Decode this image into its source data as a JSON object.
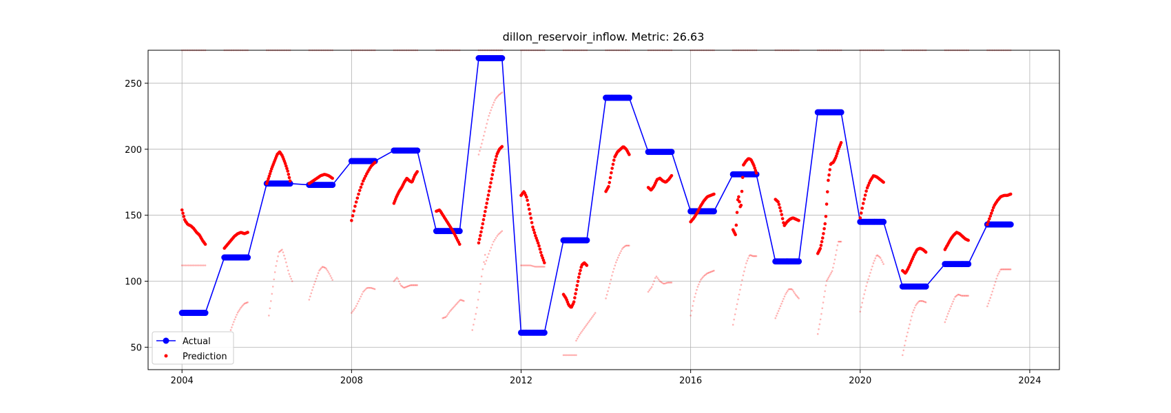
{
  "chart_data": {
    "type": "line",
    "title": "dillon_reservoir_inflow. Metric: 26.63",
    "xlabel": "",
    "ylabel": "",
    "xlim": [
      2003.2,
      2024.7
    ],
    "ylim": [
      33,
      275
    ],
    "x_ticks": [
      "2004",
      "2008",
      "2012",
      "2016",
      "2020",
      "2024"
    ],
    "y_ticks": [
      "50",
      "100",
      "150",
      "200",
      "250"
    ],
    "grid": true,
    "legend": {
      "location": "lower-left",
      "entries": [
        "Actual",
        "Prediction"
      ]
    },
    "colors": {
      "actual": "#0000ff",
      "prediction": "#ff0000"
    },
    "series": [
      {
        "name": "Actual",
        "marker": "circle",
        "steps": [
          {
            "start": 2004.0,
            "end": 2004.55,
            "value": 76
          },
          {
            "start": 2005.0,
            "end": 2005.55,
            "value": 118
          },
          {
            "start": 2006.0,
            "end": 2006.55,
            "value": 174
          },
          {
            "start": 2007.0,
            "end": 2007.55,
            "value": 173
          },
          {
            "start": 2008.0,
            "end": 2008.55,
            "value": 191
          },
          {
            "start": 2009.0,
            "end": 2009.55,
            "value": 199
          },
          {
            "start": 2010.0,
            "end": 2010.55,
            "value": 138
          },
          {
            "start": 2011.0,
            "end": 2011.55,
            "value": 269
          },
          {
            "start": 2012.0,
            "end": 2012.55,
            "value": 61
          },
          {
            "start": 2013.0,
            "end": 2013.55,
            "value": 131
          },
          {
            "start": 2014.0,
            "end": 2014.55,
            "value": 239
          },
          {
            "start": 2015.0,
            "end": 2015.55,
            "value": 198
          },
          {
            "start": 2016.0,
            "end": 2016.55,
            "value": 153
          },
          {
            "start": 2017.0,
            "end": 2017.55,
            "value": 181
          },
          {
            "start": 2018.0,
            "end": 2018.55,
            "value": 115
          },
          {
            "start": 2019.0,
            "end": 2019.55,
            "value": 228
          },
          {
            "start": 2020.0,
            "end": 2020.55,
            "value": 145
          },
          {
            "start": 2021.0,
            "end": 2021.55,
            "value": 96
          },
          {
            "start": 2022.0,
            "end": 2022.55,
            "value": 113
          },
          {
            "start": 2023.0,
            "end": 2023.55,
            "value": 143
          }
        ]
      },
      {
        "name": "Prediction",
        "marker": "dot",
        "segments": [
          {
            "start": 2004.0,
            "end": 2004.55,
            "values": [
              154,
              146,
              143,
              142,
              140,
              137,
              135,
              131,
              128
            ]
          },
          {
            "start": 2005.0,
            "end": 2005.55,
            "values": [
              125,
              128,
              131,
              134,
              136,
              137,
              136,
              137
            ]
          },
          {
            "start": 2006.0,
            "end": 2006.55,
            "values": [
              174,
              180,
              186,
              191,
              196,
              198,
              195,
              190,
              184,
              176
            ]
          },
          {
            "start": 2007.0,
            "end": 2007.55,
            "values": [
              174,
              176,
              178,
              180,
              181,
              180,
              178
            ]
          },
          {
            "start": 2008.0,
            "end": 2008.55,
            "values": [
              146,
              158,
              168,
              176,
              182,
              187,
              190
            ]
          },
          {
            "start": 2009.0,
            "end": 2009.55,
            "values": [
              159,
              164,
              168,
              171,
              175,
              178,
              176,
              175,
              180,
              183
            ]
          },
          {
            "start": 2010.0,
            "end": 2010.55,
            "values": [
              153,
              154,
              150,
              146,
              142,
              138,
              133,
              128
            ]
          },
          {
            "start": 2011.0,
            "end": 2011.55,
            "values": [
              129,
              138,
              148,
              158,
              168,
              178,
              188,
              196,
              200,
              202
            ]
          },
          {
            "start": 2012.0,
            "end": 2012.55,
            "values": [
              165,
              168,
              163,
              152,
              141,
              134,
              128,
              120,
              114
            ]
          },
          {
            "start": 2013.0,
            "end": 2013.55,
            "values": [
              90,
              87,
              82,
              80,
              84,
              94,
              104,
              112,
              114,
              112
            ]
          },
          {
            "start": 2014.0,
            "end": 2014.55,
            "values": [
              168,
              172,
              184,
              194,
              198,
              200,
              202,
              200,
              196
            ]
          },
          {
            "start": 2015.0,
            "end": 2015.55,
            "values": [
              171,
              169,
              172,
              177,
              178,
              176,
              175,
              177,
              180
            ]
          },
          {
            "start": 2016.0,
            "end": 2016.55,
            "values": [
              145,
              148,
              152,
              157,
              161,
              164,
              165,
              166
            ]
          },
          {
            "start": 2017.0,
            "end": 2017.55,
            "values": [
              139,
              135,
              166,
              154,
              188,
              191,
              193,
              192,
              188,
              182
            ]
          },
          {
            "start": 2018.0,
            "end": 2018.55,
            "values": [
              162,
              160,
              152,
              142,
              145,
              147,
              148,
              147,
              146
            ]
          },
          {
            "start": 2019.0,
            "end": 2019.55,
            "values": [
              121,
              125,
              134,
              146,
              176,
              189,
              190,
              194,
              200,
              205
            ]
          },
          {
            "start": 2020.0,
            "end": 2020.55,
            "values": [
              148,
              160,
              170,
              176,
              180,
              179,
              177,
              175
            ]
          },
          {
            "start": 2021.0,
            "end": 2021.55,
            "values": [
              108,
              106,
              110,
              115,
              120,
              124,
              125,
              124,
              122
            ]
          },
          {
            "start": 2022.0,
            "end": 2022.55,
            "values": [
              124,
              128,
              132,
              135,
              137,
              136,
              134,
              132,
              131
            ]
          },
          {
            "start": 2023.0,
            "end": 2023.55,
            "values": [
              143,
              150,
              157,
              161,
              164,
              165,
              165,
              166
            ]
          }
        ]
      }
    ],
    "faint_points": {
      "color": "#ff0000",
      "alpha": 0.3,
      "upper_band_value": 275,
      "upper_band_gaps_at": [
        2004,
        2012
      ],
      "segments": [
        {
          "start": 2004.0,
          "end": 2004.55,
          "values": [
            112,
            112,
            112,
            112,
            112
          ]
        },
        {
          "start": 2005.15,
          "end": 2005.55,
          "values": [
            63,
            70,
            76,
            80,
            83,
            84
          ]
        },
        {
          "start": 2006.05,
          "end": 2006.6,
          "values": [
            74,
            92,
            110,
            122,
            124,
            116,
            106,
            100
          ]
        },
        {
          "start": 2007.0,
          "end": 2007.55,
          "values": [
            86,
            94,
            101,
            108,
            111,
            110,
            106,
            101
          ]
        },
        {
          "start": 2008.0,
          "end": 2008.55,
          "values": [
            76,
            80,
            86,
            92,
            95,
            95,
            94
          ]
        },
        {
          "start": 2009.0,
          "end": 2009.55,
          "values": [
            100,
            103,
            97,
            95,
            96,
            97,
            97,
            97
          ]
        },
        {
          "start": 2010.15,
          "end": 2010.65,
          "values": [
            72,
            73,
            77,
            80,
            83,
            86,
            85
          ]
        },
        {
          "start": 2010.85,
          "end": 2011.15,
          "values": [
            63,
            78,
            100,
            120
          ]
        },
        {
          "start": 2011.0,
          "end": 2011.55,
          "values": [
            196,
            205,
            215,
            225,
            232,
            238,
            241,
            243
          ]
        },
        {
          "start": 2011.15,
          "end": 2011.55,
          "values": [
            113,
            122,
            130,
            135,
            138
          ]
        },
        {
          "start": 2012.0,
          "end": 2012.55,
          "values": [
            112,
            112,
            112,
            111,
            111,
            111
          ]
        },
        {
          "start": 2013.0,
          "end": 2013.3,
          "values": [
            44,
            44,
            44
          ]
        },
        {
          "start": 2013.3,
          "end": 2013.75,
          "values": [
            55,
            60,
            64,
            68,
            72,
            76
          ]
        },
        {
          "start": 2014.0,
          "end": 2014.55,
          "values": [
            87,
            96,
            106,
            114,
            120,
            125,
            127,
            127
          ]
        },
        {
          "start": 2015.0,
          "end": 2015.55,
          "values": [
            92,
            96,
            104,
            100,
            98,
            99,
            99
          ]
        },
        {
          "start": 2016.0,
          "end": 2016.55,
          "values": [
            74,
            86,
            95,
            101,
            104,
            106,
            107,
            108
          ]
        },
        {
          "start": 2017.0,
          "end": 2017.55,
          "values": [
            67,
            80,
            92,
            104,
            114,
            120,
            119,
            119
          ]
        },
        {
          "start": 2018.0,
          "end": 2018.55,
          "values": [
            72,
            78,
            84,
            90,
            94,
            94,
            90,
            87
          ]
        },
        {
          "start": 2019.0,
          "end": 2019.55,
          "values": [
            60,
            72,
            86,
            100,
            104,
            108,
            118,
            130,
            130
          ]
        },
        {
          "start": 2020.0,
          "end": 2020.55,
          "values": [
            77,
            88,
            98,
            106,
            114,
            120,
            118,
            113
          ]
        },
        {
          "start": 2021.0,
          "end": 2021.55,
          "values": [
            44,
            56,
            66,
            76,
            82,
            85,
            85,
            84
          ]
        },
        {
          "start": 2022.0,
          "end": 2022.55,
          "values": [
            69,
            76,
            82,
            88,
            90,
            89,
            89,
            89
          ]
        },
        {
          "start": 2023.0,
          "end": 2023.55,
          "values": [
            81,
            88,
            96,
            104,
            109,
            109,
            109,
            109
          ]
        }
      ]
    }
  }
}
